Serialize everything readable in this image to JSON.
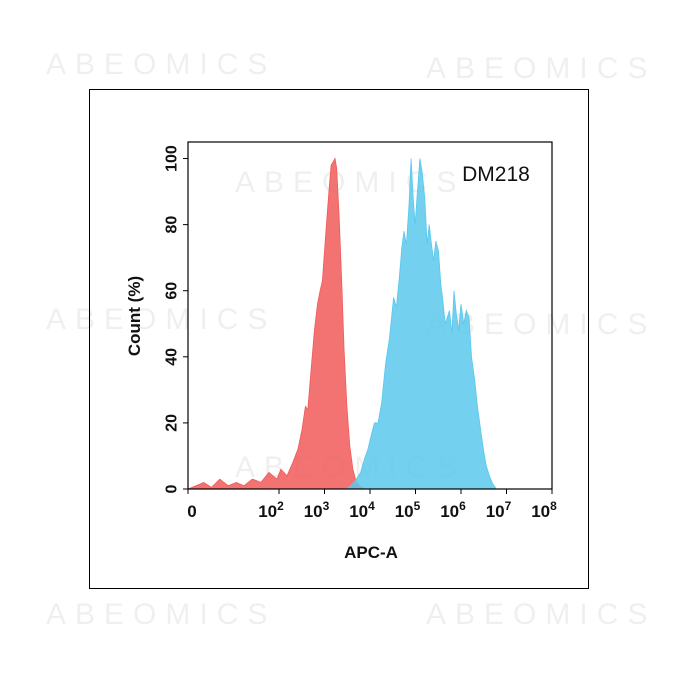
{
  "watermark": "ABEOMICS",
  "chart_data": {
    "type": "area",
    "title": "DM218",
    "xlabel": "APC-A",
    "ylabel": "Count (%)",
    "x_scale": "log",
    "xlim": [
      1,
      100000000
    ],
    "ylim": [
      0,
      105
    ],
    "x_ticks": [
      {
        "label": "0",
        "value": 1
      },
      {
        "base": "10",
        "exp": "2",
        "value": 100
      },
      {
        "base": "10",
        "exp": "3",
        "value": 1000
      },
      {
        "base": "10",
        "exp": "4",
        "value": 10000
      },
      {
        "base": "10",
        "exp": "5",
        "value": 100000
      },
      {
        "base": "10",
        "exp": "6",
        "value": 1000000
      },
      {
        "base": "10",
        "exp": "7",
        "value": 10000000
      },
      {
        "base": "10",
        "exp": "8",
        "value": 100000000
      }
    ],
    "y_ticks": [
      {
        "label": "0",
        "value": 0
      },
      {
        "label": "20",
        "value": 20
      },
      {
        "label": "40",
        "value": 40
      },
      {
        "label": "60",
        "value": 60
      },
      {
        "label": "80",
        "value": 80
      },
      {
        "label": "100",
        "value": 100
      }
    ],
    "series": [
      {
        "color": "#f15a5a",
        "points": [
          [
            1,
            0
          ],
          [
            1.5,
            1
          ],
          [
            2.2,
            2
          ],
          [
            3.3,
            0.5
          ],
          [
            5,
            3
          ],
          [
            7.6,
            1
          ],
          [
            11.5,
            2
          ],
          [
            17,
            1
          ],
          [
            26,
            3
          ],
          [
            40,
            2
          ],
          [
            60,
            5
          ],
          [
            90,
            3
          ],
          [
            110,
            6
          ],
          [
            150,
            4
          ],
          [
            200,
            8
          ],
          [
            260,
            12
          ],
          [
            320,
            18
          ],
          [
            380,
            25
          ],
          [
            430,
            24
          ],
          [
            500,
            35
          ],
          [
            600,
            48
          ],
          [
            700,
            56
          ],
          [
            800,
            60
          ],
          [
            900,
            63
          ],
          [
            1000,
            72
          ],
          [
            1100,
            80
          ],
          [
            1250,
            90
          ],
          [
            1400,
            98
          ],
          [
            1550,
            99
          ],
          [
            1700,
            100
          ],
          [
            1850,
            97
          ],
          [
            2100,
            82
          ],
          [
            2400,
            62
          ],
          [
            2700,
            42
          ],
          [
            3100,
            25
          ],
          [
            3600,
            13
          ],
          [
            4200,
            6
          ],
          [
            5000,
            2
          ],
          [
            6500,
            0.5
          ],
          [
            8000,
            0
          ]
        ]
      },
      {
        "color": "#5bc8ec",
        "points": [
          [
            3000,
            0
          ],
          [
            3800,
            1
          ],
          [
            5000,
            3
          ],
          [
            6200,
            5
          ],
          [
            7500,
            9
          ],
          [
            9000,
            12
          ],
          [
            10500,
            16
          ],
          [
            12500,
            20
          ],
          [
            15000,
            20
          ],
          [
            18000,
            26
          ],
          [
            22000,
            38
          ],
          [
            27000,
            46
          ],
          [
            33000,
            58
          ],
          [
            38000,
            55
          ],
          [
            44000,
            64
          ],
          [
            50000,
            73
          ],
          [
            56000,
            78
          ],
          [
            63000,
            74
          ],
          [
            72000,
            86
          ],
          [
            80000,
            100
          ],
          [
            89000,
            88
          ],
          [
            98000,
            80
          ],
          [
            110000,
            90
          ],
          [
            125000,
            100
          ],
          [
            140000,
            96
          ],
          [
            160000,
            88
          ],
          [
            180000,
            74
          ],
          [
            200000,
            80
          ],
          [
            225000,
            74
          ],
          [
            250000,
            69
          ],
          [
            280000,
            75
          ],
          [
            320000,
            72
          ],
          [
            360000,
            62
          ],
          [
            400000,
            57
          ],
          [
            450000,
            50
          ],
          [
            500000,
            52
          ],
          [
            560000,
            54
          ],
          [
            630000,
            47
          ],
          [
            700000,
            60
          ],
          [
            790000,
            53
          ],
          [
            890000,
            48
          ],
          [
            1000000,
            56
          ],
          [
            1150000,
            50
          ],
          [
            1300000,
            54
          ],
          [
            1500000,
            52
          ],
          [
            1700000,
            40
          ],
          [
            2000000,
            33
          ],
          [
            2300000,
            25
          ],
          [
            2700000,
            18
          ],
          [
            3100000,
            12
          ],
          [
            3600000,
            7
          ],
          [
            4200000,
            4
          ],
          [
            5000000,
            1.5
          ],
          [
            6000000,
            0
          ]
        ]
      }
    ]
  }
}
